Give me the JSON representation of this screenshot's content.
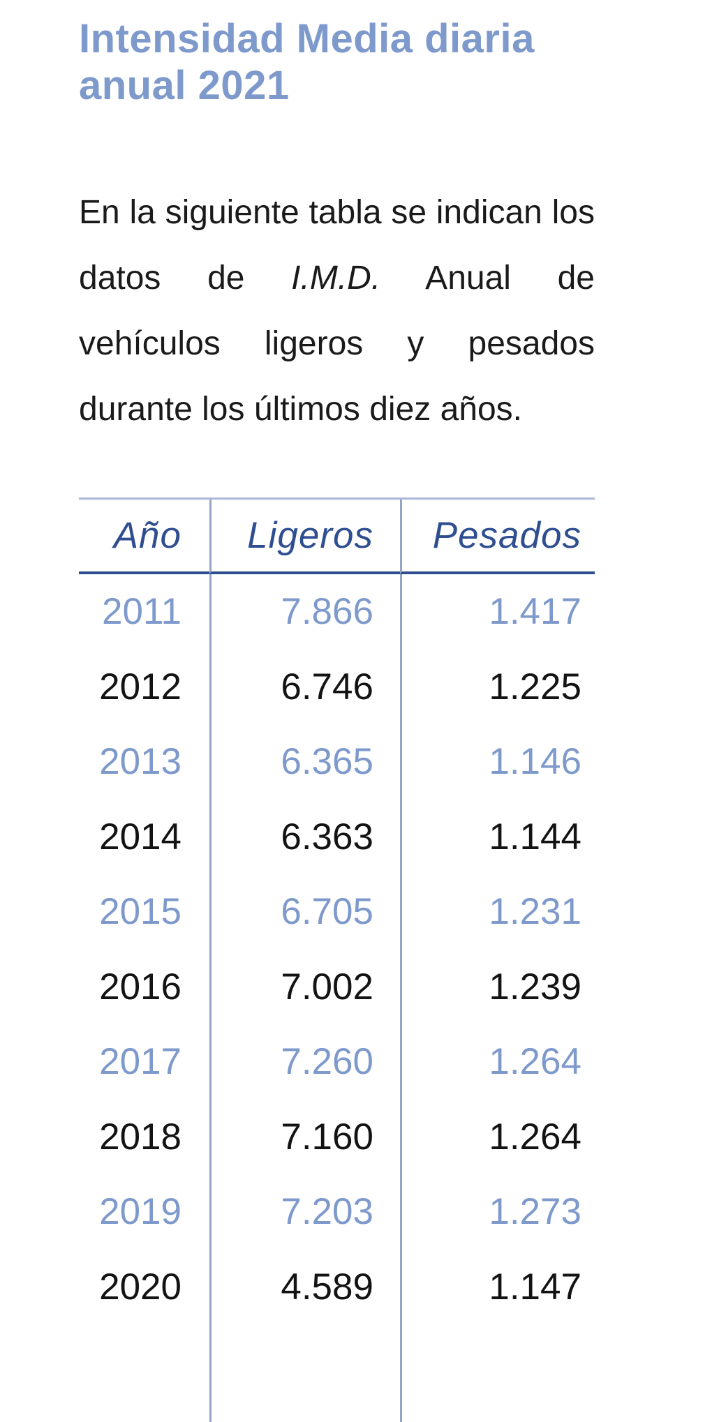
{
  "page": {
    "background": "#ffffff"
  },
  "heading": {
    "line1": "Intensidad Media diaria",
    "line2": "anual 2021",
    "color": "#7e99cb"
  },
  "paragraph": {
    "before": "En la siguiente tabla se indican los datos de ",
    "imd_italic": "I.M.D.",
    "after": " Anual de vehículos ligeros y pesados durante los últimos diez años."
  },
  "table": {
    "headers": [
      "Año",
      "Ligeros",
      "Pesados"
    ],
    "rows": [
      {
        "year": "2011",
        "ligeros": "7.866",
        "pesados": "1.417",
        "highlight": true
      },
      {
        "year": "2012",
        "ligeros": "6.746",
        "pesados": "1.225",
        "highlight": false
      },
      {
        "year": "2013",
        "ligeros": "6.365",
        "pesados": "1.146",
        "highlight": true
      },
      {
        "year": "2014",
        "ligeros": "6.363",
        "pesados": "1.144",
        "highlight": false
      },
      {
        "year": "2015",
        "ligeros": "6.705",
        "pesados": "1.231",
        "highlight": true
      },
      {
        "year": "2016",
        "ligeros": "7.002",
        "pesados": "1.239",
        "highlight": false
      },
      {
        "year": "2017",
        "ligeros": "7.260",
        "pesados": "1.264",
        "highlight": true
      },
      {
        "year": "2018",
        "ligeros": "7.160",
        "pesados": "1.264",
        "highlight": false
      },
      {
        "year": "2019",
        "ligeros": "7.203",
        "pesados": "1.273",
        "highlight": true
      },
      {
        "year": "2020",
        "ligeros": "4.589",
        "pesados": "1.147",
        "highlight": false
      }
    ],
    "colors": {
      "header_text": "#2e4e90",
      "header_rule": "#2e4e90",
      "top_border": "#aab7d9",
      "column_divider": "#92a4c9",
      "highlight_row_text": "#7e99cb",
      "normal_row_text": "#131313"
    }
  }
}
